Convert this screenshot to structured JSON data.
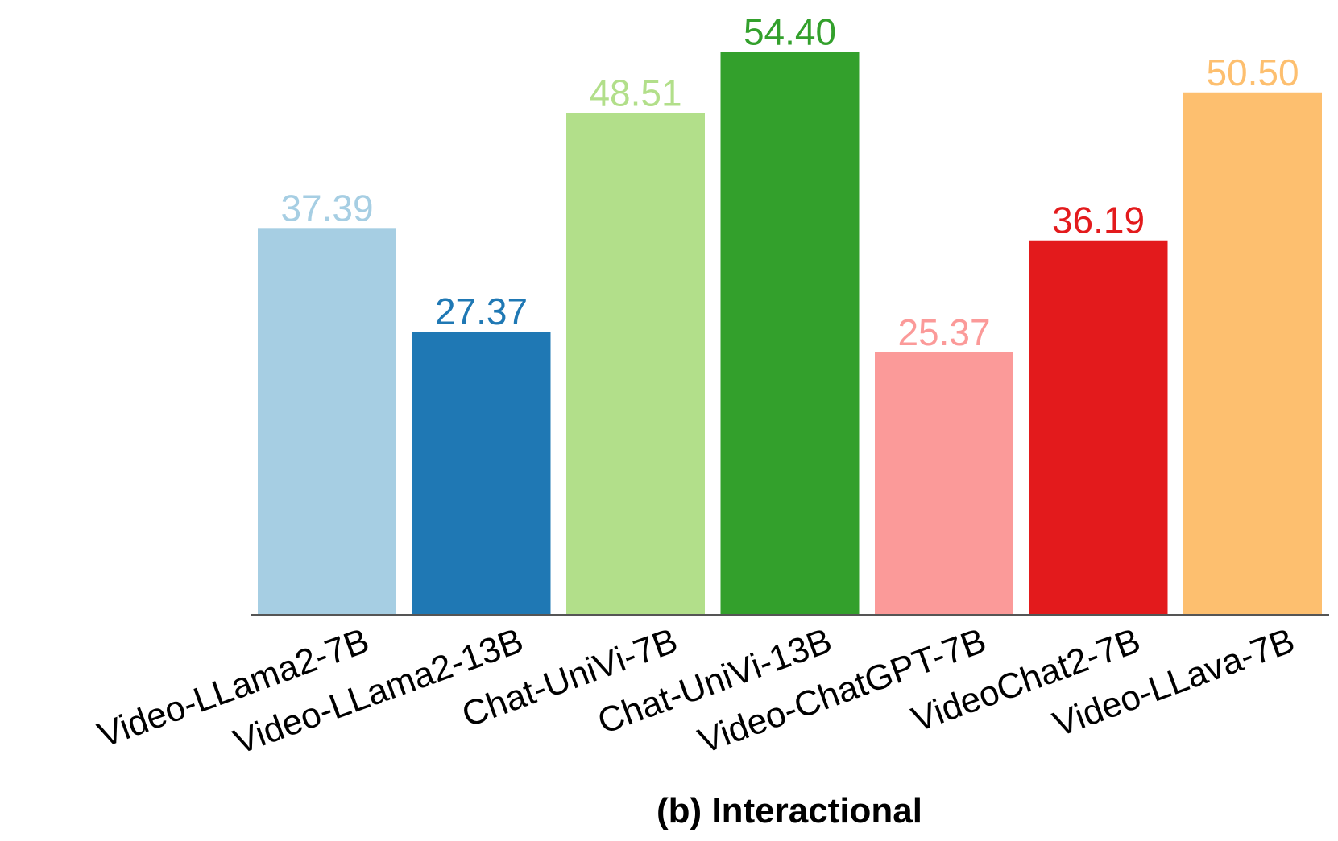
{
  "chart_data": {
    "type": "bar",
    "title": "(b) Interactional",
    "xlabel": "",
    "ylabel": "",
    "ylim": [
      0,
      56
    ],
    "grid": false,
    "legend": "none",
    "categories": [
      "Video-LLama2-7B",
      "Video-LLama2-13B",
      "Chat-UniVi-7B",
      "Chat-UniVi-13B",
      "Video-ChatGPT-7B",
      "VideoChat2-7B",
      "Video-LLava-7B"
    ],
    "values": [
      37.39,
      27.37,
      48.51,
      54.4,
      25.37,
      36.19,
      50.5
    ],
    "value_labels": [
      "37.39",
      "27.37",
      "48.51",
      "54.40",
      "25.37",
      "36.19",
      "50.50"
    ],
    "colors": [
      "#a6cee3",
      "#1f78b4",
      "#b2df8a",
      "#33a02c",
      "#fb9a99",
      "#e31a1c",
      "#fdbf6f"
    ]
  }
}
